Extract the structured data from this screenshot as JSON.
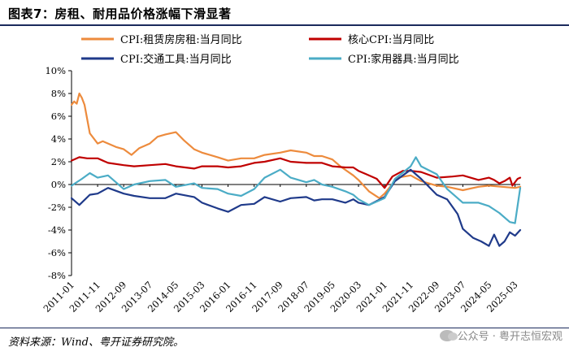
{
  "header": {
    "title": "图表7：房租、耐用品价格涨幅下滑显著"
  },
  "footer": {
    "source": "资料来源：Wind、粤开证券研究院。",
    "watermark": "公众号 · 粤开志恒宏观"
  },
  "chart_data": {
    "type": "line",
    "title": "图表7：房租、耐用品价格涨幅下滑显著",
    "ylabel": "",
    "xlabel": "",
    "ylim": [
      -8,
      10
    ],
    "yticks": [
      -8,
      -6,
      -4,
      -2,
      0,
      2,
      4,
      6,
      8,
      10
    ],
    "ytick_labels": [
      "-8%",
      "-6%",
      "-4%",
      "-2%",
      "0%",
      "2%",
      "4%",
      "6%",
      "8%",
      "10%"
    ],
    "x_start": "2011-01",
    "x_end": "2025-05",
    "xtick_labels": [
      "2011-01",
      "2011-11",
      "2012-09",
      "2013-07",
      "2014-05",
      "2015-03",
      "2016-01",
      "2016-11",
      "2017-09",
      "2018-07",
      "2019-05",
      "2020-03",
      "2021-01",
      "2021-11",
      "2022-09",
      "2023-07",
      "2024-05",
      "2025-03"
    ],
    "legend_position": "top",
    "series": [
      {
        "name": "CPI:租赁房房租:当月同比",
        "color": "#ed8b3d",
        "points": [
          [
            "2011-01",
            7.0
          ],
          [
            "2011-02",
            7.3
          ],
          [
            "2011-03",
            7.1
          ],
          [
            "2011-04",
            8.0
          ],
          [
            "2011-05",
            7.6
          ],
          [
            "2011-06",
            7.0
          ],
          [
            "2011-08",
            4.5
          ],
          [
            "2011-11",
            3.6
          ],
          [
            "2012-01",
            3.8
          ],
          [
            "2012-06",
            3.3
          ],
          [
            "2012-09",
            3.1
          ],
          [
            "2012-12",
            2.6
          ],
          [
            "2013-03",
            3.2
          ],
          [
            "2013-07",
            3.6
          ],
          [
            "2013-10",
            4.2
          ],
          [
            "2014-01",
            4.4
          ],
          [
            "2014-05",
            4.6
          ],
          [
            "2014-08",
            3.9
          ],
          [
            "2014-12",
            3.1
          ],
          [
            "2015-03",
            2.8
          ],
          [
            "2015-09",
            2.4
          ],
          [
            "2016-01",
            2.1
          ],
          [
            "2016-06",
            2.3
          ],
          [
            "2016-11",
            2.3
          ],
          [
            "2017-03",
            2.6
          ],
          [
            "2017-09",
            2.8
          ],
          [
            "2018-01",
            3.0
          ],
          [
            "2018-07",
            2.8
          ],
          [
            "2018-10",
            2.5
          ],
          [
            "2019-01",
            2.5
          ],
          [
            "2019-05",
            2.2
          ],
          [
            "2019-08",
            1.6
          ],
          [
            "2020-01",
            0.8
          ],
          [
            "2020-03",
            0.4
          ],
          [
            "2020-07",
            -0.6
          ],
          [
            "2020-11",
            -1.2
          ],
          [
            "2021-01",
            -0.8
          ],
          [
            "2021-06",
            0.6
          ],
          [
            "2021-11",
            0.8
          ],
          [
            "2022-03",
            0.3
          ],
          [
            "2022-09",
            -0.1
          ],
          [
            "2023-01",
            -0.2
          ],
          [
            "2023-07",
            -0.5
          ],
          [
            "2024-01",
            -0.2
          ],
          [
            "2024-05",
            -0.1
          ],
          [
            "2024-10",
            -0.2
          ],
          [
            "2025-03",
            -0.3
          ],
          [
            "2025-05",
            -0.2
          ]
        ]
      },
      {
        "name": "核心CPI:当月同比",
        "color": "#c00000",
        "points": [
          [
            "2011-01",
            2.1
          ],
          [
            "2011-04",
            2.4
          ],
          [
            "2011-07",
            2.3
          ],
          [
            "2011-11",
            2.3
          ],
          [
            "2012-03",
            1.9
          ],
          [
            "2012-09",
            1.7
          ],
          [
            "2013-01",
            1.6
          ],
          [
            "2013-07",
            1.7
          ],
          [
            "2014-01",
            1.8
          ],
          [
            "2014-05",
            1.6
          ],
          [
            "2014-12",
            1.4
          ],
          [
            "2015-03",
            1.6
          ],
          [
            "2015-09",
            1.6
          ],
          [
            "2016-01",
            1.5
          ],
          [
            "2016-06",
            1.6
          ],
          [
            "2016-11",
            1.9
          ],
          [
            "2017-03",
            2.0
          ],
          [
            "2017-09",
            2.3
          ],
          [
            "2018-01",
            2.0
          ],
          [
            "2018-07",
            1.9
          ],
          [
            "2019-01",
            1.9
          ],
          [
            "2019-05",
            1.6
          ],
          [
            "2019-10",
            1.5
          ],
          [
            "2020-01",
            1.5
          ],
          [
            "2020-03",
            1.2
          ],
          [
            "2020-06",
            0.9
          ],
          [
            "2020-10",
            0.5
          ],
          [
            "2021-01",
            -0.3
          ],
          [
            "2021-04",
            0.7
          ],
          [
            "2021-08",
            1.2
          ],
          [
            "2021-11",
            1.2
          ],
          [
            "2022-03",
            1.1
          ],
          [
            "2022-09",
            0.6
          ],
          [
            "2023-03",
            0.7
          ],
          [
            "2023-07",
            0.8
          ],
          [
            "2024-01",
            0.4
          ],
          [
            "2024-05",
            0.6
          ],
          [
            "2024-07",
            0.4
          ],
          [
            "2024-09",
            0.1
          ],
          [
            "2024-11",
            0.3
          ],
          [
            "2025-01",
            0.6
          ],
          [
            "2025-02",
            -0.1
          ],
          [
            "2025-04",
            0.5
          ],
          [
            "2025-05",
            0.6
          ]
        ]
      },
      {
        "name": "CPI:交通工具:当月同比",
        "color": "#1f3a8a",
        "points": [
          [
            "2011-01",
            -1.2
          ],
          [
            "2011-04",
            -1.8
          ],
          [
            "2011-08",
            -0.9
          ],
          [
            "2011-11",
            -0.8
          ],
          [
            "2012-03",
            -0.3
          ],
          [
            "2012-09",
            -0.8
          ],
          [
            "2013-01",
            -1.0
          ],
          [
            "2013-07",
            -1.2
          ],
          [
            "2014-01",
            -1.2
          ],
          [
            "2014-05",
            -0.8
          ],
          [
            "2014-12",
            -1.1
          ],
          [
            "2015-03",
            -1.6
          ],
          [
            "2015-09",
            -2.1
          ],
          [
            "2016-01",
            -2.4
          ],
          [
            "2016-06",
            -1.8
          ],
          [
            "2016-11",
            -1.7
          ],
          [
            "2017-03",
            -1.1
          ],
          [
            "2017-09",
            -1.5
          ],
          [
            "2018-01",
            -1.2
          ],
          [
            "2018-07",
            -1.1
          ],
          [
            "2018-10",
            -1.4
          ],
          [
            "2019-01",
            -1.3
          ],
          [
            "2019-05",
            -1.3
          ],
          [
            "2019-10",
            -1.6
          ],
          [
            "2020-01",
            -1.3
          ],
          [
            "2020-03",
            -1.6
          ],
          [
            "2020-07",
            -1.8
          ],
          [
            "2021-01",
            -1.1
          ],
          [
            "2021-05",
            0.3
          ],
          [
            "2021-11",
            1.3
          ],
          [
            "2022-03",
            0.5
          ],
          [
            "2022-09",
            -0.9
          ],
          [
            "2023-01",
            -1.3
          ],
          [
            "2023-05",
            -2.6
          ],
          [
            "2023-07",
            -3.9
          ],
          [
            "2023-11",
            -4.7
          ],
          [
            "2024-02",
            -5.0
          ],
          [
            "2024-05",
            -5.4
          ],
          [
            "2024-07",
            -4.4
          ],
          [
            "2024-09",
            -5.4
          ],
          [
            "2024-11",
            -5.0
          ],
          [
            "2025-01",
            -4.2
          ],
          [
            "2025-03",
            -4.5
          ],
          [
            "2025-05",
            -4.0
          ]
        ]
      },
      {
        "name": "CPI:家用器具:当月同比",
        "color": "#4bacc6",
        "points": [
          [
            "2011-01",
            -0.1
          ],
          [
            "2011-05",
            0.5
          ],
          [
            "2011-08",
            1.0
          ],
          [
            "2011-11",
            0.6
          ],
          [
            "2012-03",
            0.8
          ],
          [
            "2012-09",
            -0.4
          ],
          [
            "2013-01",
            0.0
          ],
          [
            "2013-07",
            0.3
          ],
          [
            "2014-01",
            0.4
          ],
          [
            "2014-05",
            -0.2
          ],
          [
            "2014-12",
            0.1
          ],
          [
            "2015-03",
            -0.3
          ],
          [
            "2015-09",
            -0.4
          ],
          [
            "2016-01",
            -0.8
          ],
          [
            "2016-06",
            -1.0
          ],
          [
            "2016-11",
            -0.4
          ],
          [
            "2017-03",
            0.6
          ],
          [
            "2017-09",
            1.3
          ],
          [
            "2018-01",
            0.6
          ],
          [
            "2018-07",
            0.2
          ],
          [
            "2018-10",
            0.4
          ],
          [
            "2019-01",
            0.0
          ],
          [
            "2019-05",
            -0.2
          ],
          [
            "2019-10",
            -0.6
          ],
          [
            "2020-01",
            -0.9
          ],
          [
            "2020-03",
            -1.3
          ],
          [
            "2020-07",
            -1.8
          ],
          [
            "2021-01",
            -1.2
          ],
          [
            "2021-05",
            0.5
          ],
          [
            "2021-11",
            1.6
          ],
          [
            "2022-01",
            2.4
          ],
          [
            "2022-03",
            1.6
          ],
          [
            "2022-09",
            0.9
          ],
          [
            "2023-01",
            -0.4
          ],
          [
            "2023-05",
            -1.2
          ],
          [
            "2023-07",
            -1.6
          ],
          [
            "2024-01",
            -1.6
          ],
          [
            "2024-05",
            -1.9
          ],
          [
            "2024-09",
            -2.5
          ],
          [
            "2025-01",
            -3.3
          ],
          [
            "2025-03",
            -3.4
          ],
          [
            "2025-05",
            -0.3
          ]
        ]
      }
    ]
  }
}
